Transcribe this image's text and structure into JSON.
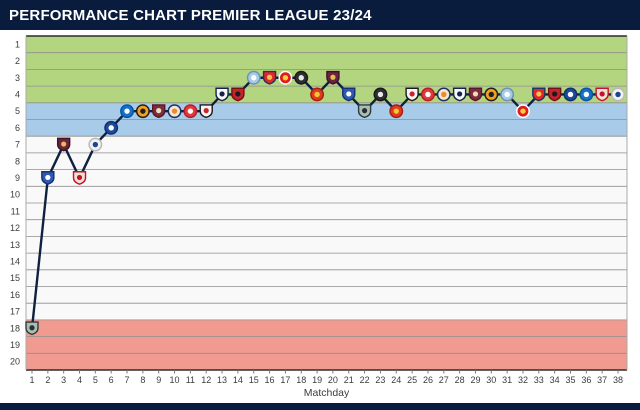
{
  "header": {
    "title": "PERFORMANCE CHART PREMIER LEAGUE 23/24"
  },
  "colors": {
    "header_bg": "#0a1c3e",
    "footer_bg": "#0a1c3e",
    "grid": "#8f8f8f",
    "axis": "#2b2b2b",
    "side_border": "#aaaaaa",
    "label": "#3c3c3c",
    "page_bg": "#ffffff"
  },
  "chart_data": {
    "type": "line",
    "title": "PERFORMANCE CHART PREMIER LEAGUE 23/24",
    "xlabel": "Matchday",
    "ylabel": "",
    "x": [
      1,
      2,
      3,
      4,
      5,
      6,
      7,
      8,
      9,
      10,
      11,
      12,
      13,
      14,
      15,
      16,
      17,
      18,
      19,
      20,
      21,
      22,
      23,
      24,
      25,
      26,
      27,
      28,
      29,
      30,
      31,
      32,
      33,
      34,
      35,
      36,
      37,
      38
    ],
    "y_ticks": [
      1,
      2,
      3,
      4,
      5,
      6,
      7,
      8,
      9,
      10,
      11,
      12,
      13,
      14,
      15,
      16,
      17,
      18,
      19,
      20
    ],
    "ylim": [
      1,
      20
    ],
    "y_axis_reversed": true,
    "grid": true,
    "legend": "none",
    "line_color": "#0e2140",
    "series": [
      {
        "name": "league-position-by-matchday",
        "values": [
          18,
          9,
          7,
          9,
          7,
          6,
          5,
          5,
          5,
          5,
          5,
          5,
          4,
          4,
          3,
          3,
          3,
          3,
          4,
          3,
          4,
          5,
          4,
          5,
          4,
          4,
          4,
          4,
          4,
          4,
          4,
          5,
          4,
          4,
          4,
          4,
          4,
          4
        ]
      }
    ],
    "matchday_opponent_badges": [
      "newcastle-united",
      "everton",
      "burnley",
      "liverpool",
      "crystal-palace",
      "chelsea",
      "brighton",
      "wolves",
      "west-ham",
      "luton-town",
      "nottingham-forest",
      "fulham",
      "tottenham",
      "bournemouth",
      "man-city",
      "arsenal",
      "brentford",
      "sheffield-united",
      "man-united",
      "burnley",
      "everton",
      "newcastle-united",
      "sheffield-united",
      "man-united",
      "fulham",
      "nottingham-forest",
      "luton-town",
      "tottenham",
      "west-ham",
      "wolves",
      "man-city",
      "brentford",
      "arsenal",
      "bournemouth",
      "chelsea",
      "brighton",
      "liverpool",
      "crystal-palace"
    ],
    "zones": [
      {
        "rows": [
          1,
          4
        ],
        "color": "#b4d57f"
      },
      {
        "rows": [
          5,
          6
        ],
        "color": "#a7cbe9"
      },
      {
        "rows": [
          7,
          17
        ],
        "color": "#f9f9f9"
      },
      {
        "rows": [
          18,
          20
        ],
        "color": "#f09a90"
      }
    ]
  },
  "badge_styles": {
    "newcastle-united": {
      "shape": "shield",
      "bg": "#aebdb2",
      "ring": "#2f3a3a",
      "dot": "#243138"
    },
    "everton": {
      "shape": "shield",
      "bg": "#2d59b5",
      "ring": "#17316e",
      "dot": "#ffffff"
    },
    "burnley": {
      "shape": "shield",
      "bg": "#6d2140",
      "ring": "#3d1226",
      "dot": "#e0c04a"
    },
    "liverpool": {
      "shape": "shield",
      "bg": "#f0e3d1",
      "ring": "#c8102e",
      "dot": "#c8102e"
    },
    "crystal-palace": {
      "shape": "circle",
      "bg": "#f2f2f0",
      "ring": "#b9b9b9",
      "dot": "#1b458f"
    },
    "chelsea": {
      "shape": "circle",
      "bg": "#1e4a9e",
      "ring": "#10306e",
      "dot": "#ffffff"
    },
    "brighton": {
      "shape": "circle",
      "bg": "#1572c5",
      "ring": "#0a57a0",
      "dot": "#ffffff"
    },
    "wolves": {
      "shape": "circle",
      "bg": "#efa31d",
      "ring": "#231f20",
      "dot": "#231f20"
    },
    "west-ham": {
      "shape": "shield",
      "bg": "#7c2c3b",
      "ring": "#59172a",
      "dot": "#eadfc0"
    },
    "luton-town": {
      "shape": "circle",
      "bg": "#efe8da",
      "ring": "#1d2f5e",
      "dot": "#ef8a2a"
    },
    "nottingham-forest": {
      "shape": "circle",
      "bg": "#e23a3c",
      "ring": "#b41f24",
      "dot": "#ffffff"
    },
    "fulham": {
      "shape": "shield",
      "bg": "#f5f5f5",
      "ring": "#1a1a1a",
      "dot": "#cc2229"
    },
    "tottenham": {
      "shape": "shield",
      "bg": "#f8f8f8",
      "ring": "#12234f",
      "dot": "#12234f"
    },
    "bournemouth": {
      "shape": "shield",
      "bg": "#c6222c",
      "ring": "#6f1216",
      "dot": "#1a1a1a"
    },
    "man-city": {
      "shape": "circle",
      "bg": "#a6cbe9",
      "ring": "#6e93b8",
      "dot": "#ffffff"
    },
    "arsenal": {
      "shape": "shield",
      "bg": "#e2262b",
      "ring": "#1c3561",
      "dot": "#f2c14e"
    },
    "brentford": {
      "shape": "circle",
      "bg": "#e21c1c",
      "ring": "#ffffff",
      "dot": "#f3d03e"
    },
    "sheffield-united": {
      "shape": "circle",
      "bg": "#2e2e2e",
      "ring": "#191919",
      "dot": "#e8e8e8"
    },
    "man-united": {
      "shape": "circle",
      "bg": "#e03a26",
      "ring": "#a8200f",
      "dot": "#f3c731"
    }
  }
}
